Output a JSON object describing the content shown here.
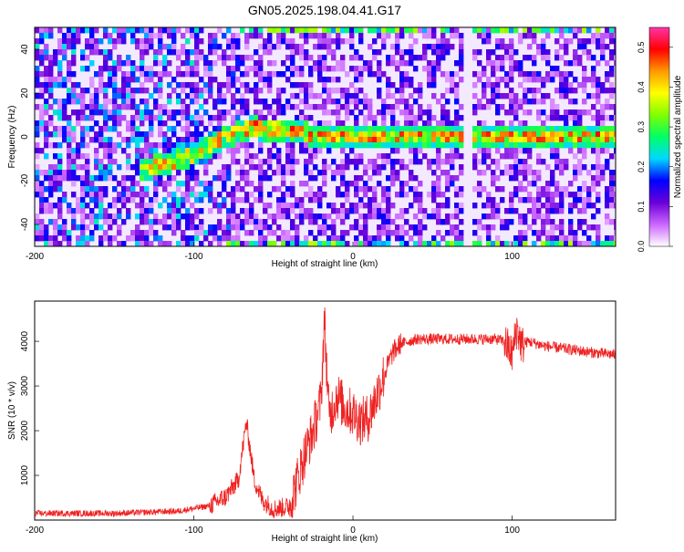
{
  "title": "GN05.2025.198.04.41.G17",
  "chart_data": [
    {
      "type": "heatmap",
      "xlabel": "Height of straight line (km)",
      "ylabel": "Frequency (Hz)",
      "xlim": [
        -200,
        165
      ],
      "ylim": [
        -50,
        50
      ],
      "xticks": [
        -200,
        -100,
        0,
        100
      ],
      "xtick_labels": [
        "-200",
        "-100",
        "0",
        "100"
      ],
      "yticks": [
        -40,
        -20,
        0,
        20,
        40
      ],
      "ytick_labels": [
        "-40",
        "-20",
        "0",
        "20",
        "40"
      ],
      "colorbar": {
        "label": "Normalized spectral amplitude",
        "range": [
          0,
          0.55
        ],
        "ticks": [
          0,
          0.1,
          0.2,
          0.3,
          0.4,
          0.5
        ],
        "tick_labels": [
          "0.0",
          "0.1",
          "0.2",
          "0.3",
          "0.4",
          "0.5"
        ],
        "colors": [
          "#ffffff",
          "#cc66ff",
          "#6a00d8",
          "#0000ff",
          "#00d8ff",
          "#00ff66",
          "#80ff00",
          "#ffff00",
          "#ff9900",
          "#ff0000",
          "#ff33aa"
        ]
      },
      "signal_band": {
        "description_points": [
          [
            -130,
            -15
          ],
          [
            -100,
            -8
          ],
          [
            -80,
            0
          ],
          [
            -65,
            4
          ],
          [
            -40,
            3
          ],
          [
            -20,
            0
          ],
          [
            0,
            0
          ],
          [
            40,
            0
          ],
          [
            70,
            0
          ],
          [
            100,
            0
          ],
          [
            165,
            0
          ]
        ],
        "gap_x": [
          68,
          76
        ]
      },
      "grid": false
    },
    {
      "type": "line",
      "xlabel": "Height of straight line (km)",
      "ylabel": "SNR (10 * v/v)",
      "xlim": [
        -200,
        165
      ],
      "ylim": [
        0,
        4900
      ],
      "xticks": [
        -200,
        -100,
        0,
        100
      ],
      "xtick_labels": [
        "-200",
        "-100",
        "0",
        "100"
      ],
      "yticks": [
        1000,
        2000,
        3000,
        4000
      ],
      "ytick_labels": [
        "1000",
        "2000",
        "3000",
        "4000"
      ],
      "color": "#ee2222",
      "series": [
        {
          "x": [
            -200,
            -150,
            -110,
            -90,
            -80,
            -72,
            -67,
            -62,
            -57,
            -50,
            -40,
            -35,
            -30,
            -25,
            -20,
            -18,
            -15,
            -10,
            -5,
            0,
            5,
            10,
            15,
            20,
            25,
            30,
            40,
            50,
            60,
            70,
            80,
            90,
            95,
            100,
            103,
            106,
            110,
            120,
            130,
            140,
            150,
            165
          ],
          "y": [
            150,
            150,
            200,
            320,
            520,
            900,
            2200,
            900,
            450,
            250,
            300,
            900,
            1500,
            2000,
            2700,
            4500,
            2300,
            2800,
            2500,
            2400,
            2200,
            2300,
            2800,
            3300,
            3750,
            3950,
            4050,
            4050,
            4050,
            4050,
            4050,
            4050,
            4000,
            3700,
            4300,
            3900,
            4000,
            3900,
            3850,
            3800,
            3750,
            3700
          ]
        }
      ],
      "grid": false
    }
  ]
}
